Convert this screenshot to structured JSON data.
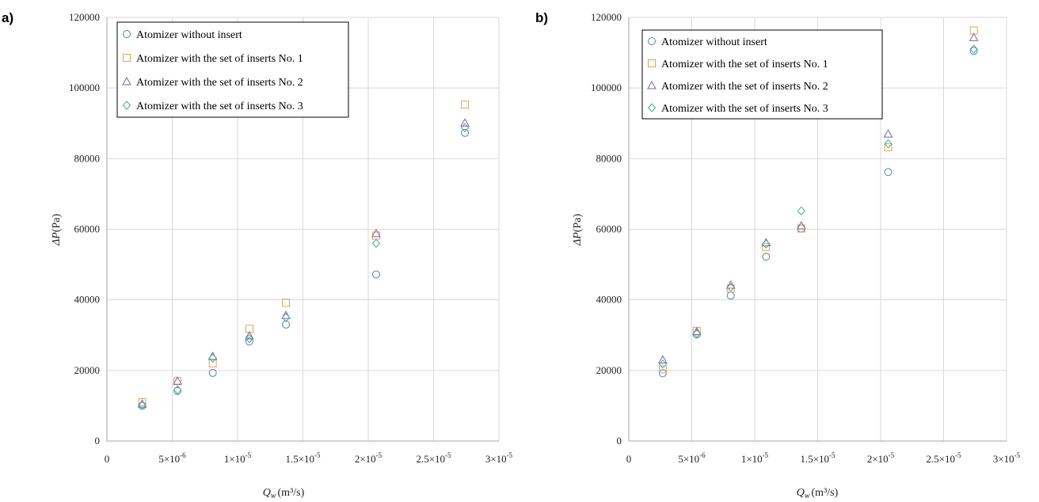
{
  "chart_data": [
    {
      "panel_label": "a)",
      "type": "scatter",
      "xlabel": "Q",
      "xlabel_sub": "w",
      "xlabel_units": "(m³/s)",
      "ylabel": "ΔP",
      "ylabel_units": "(Pa)",
      "xlim": [
        0,
        3e-05
      ],
      "ylim": [
        0,
        120000
      ],
      "y_ticks": [
        "0",
        "20000",
        "40000",
        "60000",
        "80000",
        "100000",
        "120000"
      ],
      "x_ticks": [
        {
          "value": 0,
          "mant": "0",
          "exp": ""
        },
        {
          "value": 5e-06,
          "mant": "5×10",
          "exp": "-6"
        },
        {
          "value": 1e-05,
          "mant": "1×10",
          "exp": "-5"
        },
        {
          "value": 1.5e-05,
          "mant": "1.5×10",
          "exp": "-5"
        },
        {
          "value": 2e-05,
          "mant": "2×10",
          "exp": "-5"
        },
        {
          "value": 2.5e-05,
          "mant": "2.5×10",
          "exp": "-5"
        },
        {
          "value": 3e-05,
          "mant": "3×10",
          "exp": "-5"
        }
      ],
      "grid": true,
      "legend_position": "top-left",
      "series": [
        {
          "name": "Atomizer without insert",
          "marker": "circle",
          "color": "#4f81bd",
          "x": [
            2.7e-06,
            5.4e-06,
            8.1e-06,
            1.09e-05,
            1.37e-05,
            2.06e-05,
            2.74e-05
          ],
          "y": [
            10000,
            14200,
            19300,
            28200,
            33000,
            47200,
            87300
          ]
        },
        {
          "name": "Atomizer with the set of inserts No. 1",
          "marker": "square",
          "color": "#e4a05a",
          "x": [
            2.7e-06,
            5.4e-06,
            8.1e-06,
            1.09e-05,
            1.37e-05,
            2.06e-05,
            2.74e-05
          ],
          "y": [
            11000,
            17000,
            22000,
            31800,
            39200,
            58200,
            95300
          ]
        },
        {
          "name": "Atomizer with the set of inserts No. 2",
          "marker": "triangle",
          "color": "#8064a2",
          "x": [
            2.7e-06,
            5.4e-06,
            8.1e-06,
            1.09e-05,
            1.37e-05,
            2.06e-05,
            2.74e-05
          ],
          "y": [
            10500,
            17000,
            24000,
            29800,
            35600,
            58800,
            90100
          ]
        },
        {
          "name": "Atomizer with the set of inserts No. 3",
          "marker": "diamond",
          "color": "#4bac8c",
          "x": [
            2.7e-06,
            5.4e-06,
            8.1e-06,
            1.09e-05,
            1.37e-05,
            2.06e-05,
            2.74e-05
          ],
          "y": [
            10200,
            14500,
            23500,
            29000,
            35000,
            56000,
            88800
          ]
        }
      ]
    },
    {
      "panel_label": "b)",
      "type": "scatter",
      "xlabel": "Q",
      "xlabel_sub": "w",
      "xlabel_units": "(m³/s)",
      "ylabel": "ΔP",
      "ylabel_units": "(Pa)",
      "xlim": [
        0,
        3e-05
      ],
      "ylim": [
        0,
        120000
      ],
      "y_ticks": [
        "0",
        "20000",
        "40000",
        "60000",
        "80000",
        "100000",
        "120000"
      ],
      "x_ticks": [
        {
          "value": 0,
          "mant": "0",
          "exp": ""
        },
        {
          "value": 5e-06,
          "mant": "5×10",
          "exp": "-6"
        },
        {
          "value": 1e-05,
          "mant": "1×10",
          "exp": "-5"
        },
        {
          "value": 1.5e-05,
          "mant": "1.5×10",
          "exp": "-5"
        },
        {
          "value": 2e-05,
          "mant": "2×10",
          "exp": "-5"
        },
        {
          "value": 2.5e-05,
          "mant": "2.5×10",
          "exp": "-5"
        },
        {
          "value": 3e-05,
          "mant": "3×10",
          "exp": "-5"
        }
      ],
      "grid": true,
      "legend_position": "top-left",
      "series": [
        {
          "name": "Atomizer without insert",
          "marker": "circle",
          "color": "#4f81bd",
          "x": [
            2.7e-06,
            5.4e-06,
            8.1e-06,
            1.09e-05,
            1.37e-05,
            2.06e-05,
            2.74e-05
          ],
          "y": [
            19200,
            30200,
            41200,
            52200,
            60200,
            76200,
            110500
          ]
        },
        {
          "name": "Atomizer with the set of inserts No. 1",
          "marker": "square",
          "color": "#e4a05a",
          "x": [
            2.7e-06,
            5.4e-06,
            8.1e-06,
            1.09e-05,
            1.37e-05,
            2.06e-05,
            2.74e-05
          ],
          "y": [
            20300,
            31200,
            43200,
            55000,
            60200,
            83200,
            116300
          ]
        },
        {
          "name": "Atomizer with the set of inserts No. 2",
          "marker": "triangle",
          "color": "#8064a2",
          "x": [
            2.7e-06,
            5.4e-06,
            8.1e-06,
            1.09e-05,
            1.37e-05,
            2.06e-05,
            2.74e-05
          ],
          "y": [
            23000,
            31000,
            44200,
            56200,
            61000,
            87000,
            114300
          ]
        },
        {
          "name": "Atomizer with the set of inserts No. 3",
          "marker": "diamond",
          "color": "#4bac8c",
          "x": [
            2.7e-06,
            5.4e-06,
            8.1e-06,
            1.09e-05,
            1.37e-05,
            2.06e-05,
            2.74e-05
          ],
          "y": [
            21800,
            30500,
            43500,
            55800,
            65200,
            84200,
            111000
          ]
        }
      ]
    }
  ]
}
